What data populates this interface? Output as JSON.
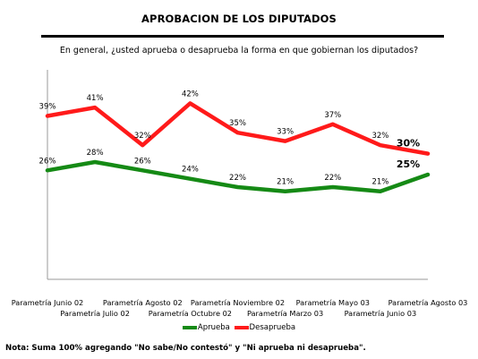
{
  "title": "APROBACION DE LOS DIPUTADOS",
  "question": "En general, ¿usted aprueba o desaprueba la forma en que gobiernan los diputados?",
  "note": "Nota: Suma 100% agregando  \"No sabe/No contestó\" y \"Ni aprueba ni desaprueba\".",
  "chart_data": {
    "type": "line",
    "categories": [
      "Parametría Junio 02",
      "Parametría Julio 02",
      "Parametría Agosto 02",
      "Parametría Octubre 02",
      "Parametría Noviembre 02",
      "Parametría Marzo 03",
      "Parametría Mayo 03",
      "Parametría Junio 03",
      "Parametría Agosto 03"
    ],
    "series": [
      {
        "name": "Aprueba",
        "color": "#158a15",
        "values": [
          26,
          28,
          26,
          24,
          22,
          21,
          22,
          21,
          25
        ],
        "labels": [
          "26%",
          "28%",
          "26%",
          "24%",
          "22%",
          "21%",
          "22%",
          "21%",
          "25%"
        ]
      },
      {
        "name": "Desaprueba",
        "color": "#ff1a1a",
        "values": [
          39,
          41,
          32,
          42,
          35,
          33,
          37,
          32,
          30
        ],
        "labels": [
          "39%",
          "41%",
          "32%",
          "42%",
          "35%",
          "33%",
          "37%",
          "32%",
          "30%"
        ]
      }
    ],
    "ylim": [
      0,
      50
    ],
    "grid": false,
    "legend_position": "bottom"
  }
}
